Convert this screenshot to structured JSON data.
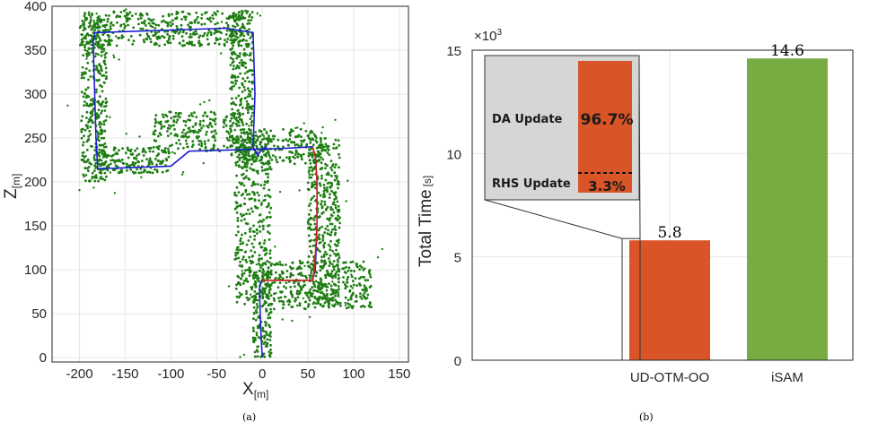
{
  "colors": {
    "landmark": "#1e7d12",
    "trajectory_blue": "#1f1fd0",
    "trajectory_red": "#d62020",
    "bar_ud": "#d95427",
    "bar_isam": "#77ac43",
    "inset_bg": "#d6d6d6",
    "grid": "#e6e6e6"
  },
  "chart_data": [
    {
      "type": "scatter",
      "caption": "(a)",
      "xlabel": "X",
      "xlabel_unit": "[m]",
      "ylabel": "Z",
      "ylabel_unit": "[m]",
      "xlim": [
        -230,
        160
      ],
      "ylim": [
        -5,
        400
      ],
      "xticks": [
        -200,
        -150,
        -100,
        -50,
        0,
        50,
        100,
        150
      ],
      "yticks": [
        0,
        50,
        100,
        150,
        200,
        250,
        300,
        350,
        400
      ],
      "grid": true,
      "trajectory_blue": {
        "x": [
          0,
          -2,
          -3,
          -2,
          0,
          55,
          58,
          60,
          60,
          58,
          55,
          20,
          -80,
          -100,
          -180,
          -182,
          -185,
          -183,
          -40,
          -10,
          -8,
          -10,
          -5,
          0,
          5
        ],
        "y": [
          0,
          40,
          80,
          85,
          88,
          88,
          100,
          150,
          200,
          230,
          240,
          238,
          235,
          218,
          215,
          250,
          360,
          370,
          375,
          370,
          300,
          240,
          230,
          238,
          240
        ]
      },
      "trajectory_red": {
        "x": [
          0,
          55,
          57,
          60,
          60,
          58,
          55
        ],
        "y": [
          88,
          88,
          100,
          150,
          200,
          230,
          240
        ]
      },
      "landmark_regions": [
        {
          "x": [
            -198,
            -170
          ],
          "y": [
            200,
            385
          ],
          "density": 0.9
        },
        {
          "x": [
            -200,
            -20
          ],
          "y": [
            355,
            395
          ],
          "density": 0.8
        },
        {
          "x": [
            -185,
            -100
          ],
          "y": [
            210,
            240
          ],
          "density": 0.8
        },
        {
          "x": [
            -35,
            -10
          ],
          "y": [
            230,
            395
          ],
          "density": 0.9
        },
        {
          "x": [
            -120,
            -20
          ],
          "y": [
            235,
            280
          ],
          "density": 0.6
        },
        {
          "x": [
            -30,
            10
          ],
          "y": [
            60,
            250
          ],
          "density": 0.7
        },
        {
          "x": [
            -20,
            65
          ],
          "y": [
            220,
            260
          ],
          "density": 0.7
        },
        {
          "x": [
            50,
            85
          ],
          "y": [
            60,
            250
          ],
          "density": 0.9
        },
        {
          "x": [
            0,
            120
          ],
          "y": [
            55,
            110
          ],
          "density": 0.8
        },
        {
          "x": [
            -10,
            10
          ],
          "y": [
            0,
            100
          ],
          "density": 0.6
        }
      ]
    },
    {
      "type": "bar",
      "caption": "(b)",
      "ylabel": "Total Time",
      "ylabel_unit": "[s]",
      "y_multiplier": "×10",
      "y_multiplier_exp": "3",
      "ylim": [
        0,
        15
      ],
      "yticks": [
        0,
        5,
        10,
        15
      ],
      "grid": true,
      "categories": [
        "UD-OTM-OO",
        "iSAM"
      ],
      "values": [
        5.8,
        14.6
      ],
      "data_labels": [
        "5.8",
        "14.6"
      ],
      "inset": {
        "breakdown": [
          {
            "label": "DA Update",
            "value": 96.7,
            "text": "96.7%"
          },
          {
            "label": "RHS Update",
            "value": 3.3,
            "text": "3.3%"
          }
        ]
      }
    }
  ]
}
